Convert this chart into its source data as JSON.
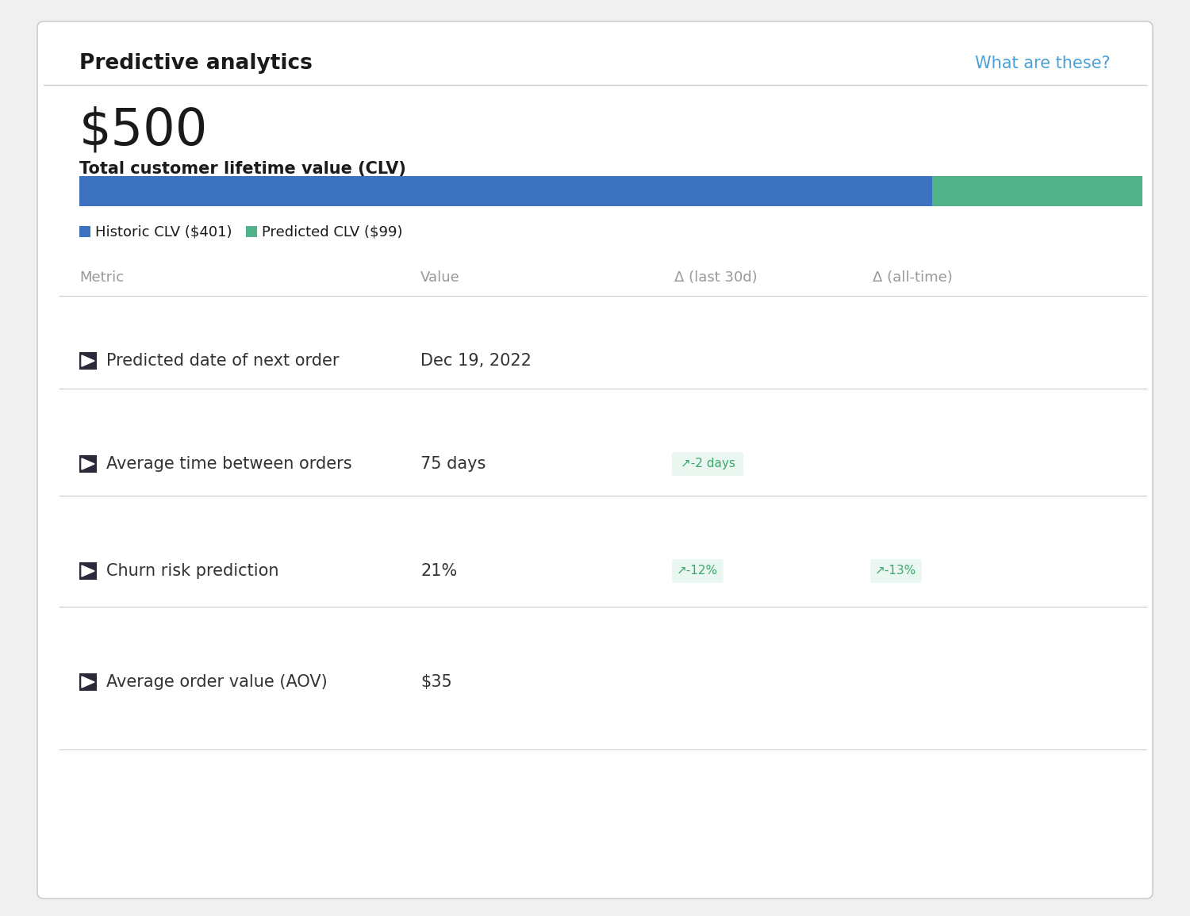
{
  "title": "Predictive analytics",
  "link_text": "What are these?",
  "link_color": "#4a9fd4",
  "total_clv": "$500",
  "clv_label": "Total customer lifetime value (CLV)",
  "historic_clv_label": "Historic CLV ($401)",
  "predicted_clv_label": "Predicted CLV ($99)",
  "historic_clv_value": 401,
  "predicted_clv_value": 99,
  "total_clv_value": 500,
  "historic_color": "#3c72c0",
  "predicted_color": "#52b38a",
  "bg_color": "#ffffff",
  "outer_bg": "#f0f0f0",
  "border_color": "#cccccc",
  "title_color": "#1a1a1a",
  "metric_header_color": "#999999",
  "metric_text_color": "#333333",
  "delta_badge_bg": "#eaf6f0",
  "delta_badge_color": "#3aa86a",
  "icon_color": "#2a2a3a",
  "table_columns": [
    "Metric",
    "Value",
    "Δ (last 30d)",
    "Δ (all-time)"
  ],
  "table_rows": [
    {
      "metric": "Predicted date of next order",
      "value": "Dec 19, 2022",
      "delta_30d": "",
      "delta_alltime": ""
    },
    {
      "metric": "Average time between orders",
      "value": "75 days",
      "delta_30d": "-2 days",
      "delta_alltime": ""
    },
    {
      "metric": "Churn risk prediction",
      "value": "21%",
      "delta_30d": "-12%",
      "delta_alltime": "-13%"
    },
    {
      "metric": "Average order value (AOV)",
      "value": "$35",
      "delta_30d": "",
      "delta_alltime": ""
    }
  ]
}
